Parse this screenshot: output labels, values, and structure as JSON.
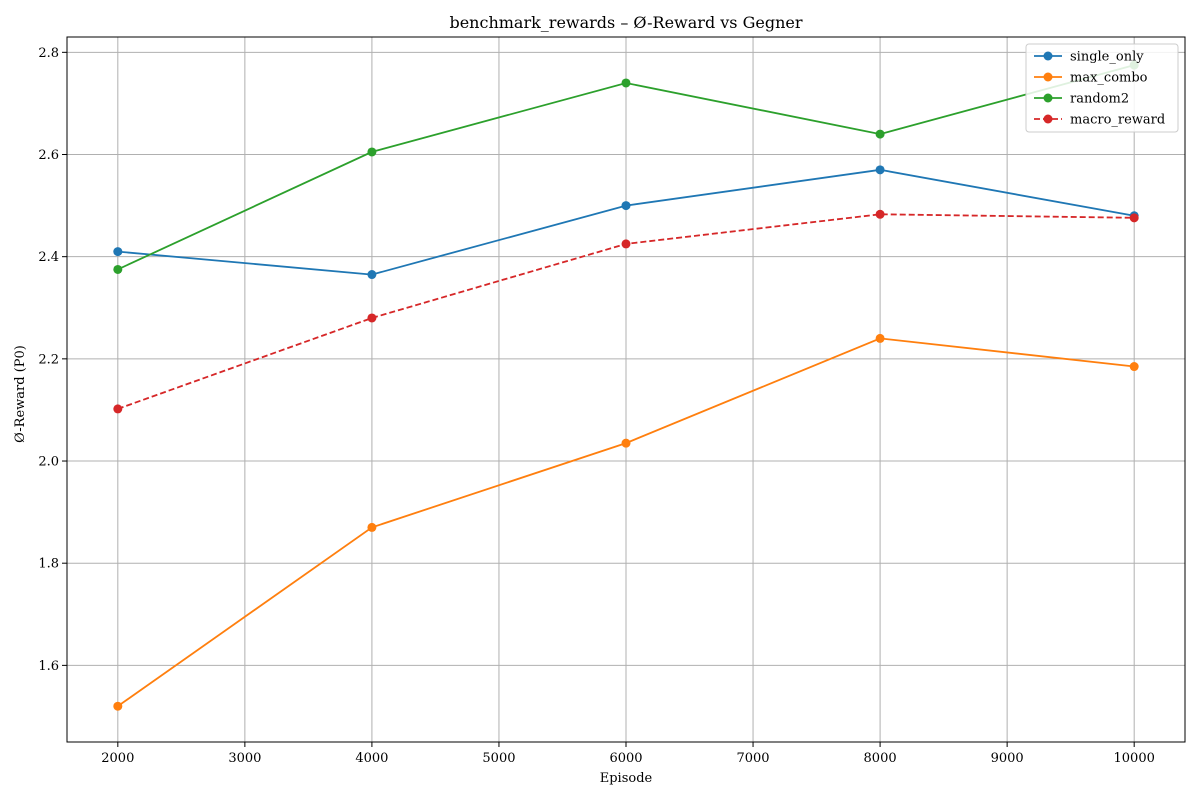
{
  "chart_data": {
    "type": "line",
    "title": "benchmark_rewards – Ø-Reward vs Gegner",
    "xlabel": "Episode",
    "ylabel": "Ø-Reward (P0)",
    "xlim": [
      1600,
      10400
    ],
    "ylim": [
      1.45,
      2.83
    ],
    "x_ticks": [
      2000,
      3000,
      4000,
      5000,
      6000,
      7000,
      8000,
      9000,
      10000
    ],
    "y_ticks": [
      1.6,
      1.8,
      2.0,
      2.2,
      2.4,
      2.6,
      2.8
    ],
    "x_tick_labels": [
      "2000",
      "3000",
      "4000",
      "5000",
      "6000",
      "7000",
      "8000",
      "9000",
      "10000"
    ],
    "y_tick_labels": [
      "1.6",
      "1.8",
      "2.0",
      "2.2",
      "2.4",
      "2.6",
      "2.8"
    ],
    "grid": true,
    "legend_position": "top-right",
    "x": [
      2000,
      4000,
      6000,
      8000,
      10000
    ],
    "series": [
      {
        "name": "single_only",
        "values": [
          2.41,
          2.365,
          2.5,
          2.57,
          2.48
        ],
        "color": "#1f77b4",
        "dashed": false
      },
      {
        "name": "max_combo",
        "values": [
          1.52,
          1.87,
          2.035,
          2.24,
          2.185
        ],
        "color": "#ff7f0e",
        "dashed": false
      },
      {
        "name": "random2",
        "values": [
          2.375,
          2.605,
          2.74,
          2.64,
          2.775
        ],
        "color": "#2ca02c",
        "dashed": false
      },
      {
        "name": "macro_reward",
        "values": [
          2.102,
          2.28,
          2.425,
          2.483,
          2.476
        ],
        "color": "#d62728",
        "dashed": true
      }
    ]
  }
}
